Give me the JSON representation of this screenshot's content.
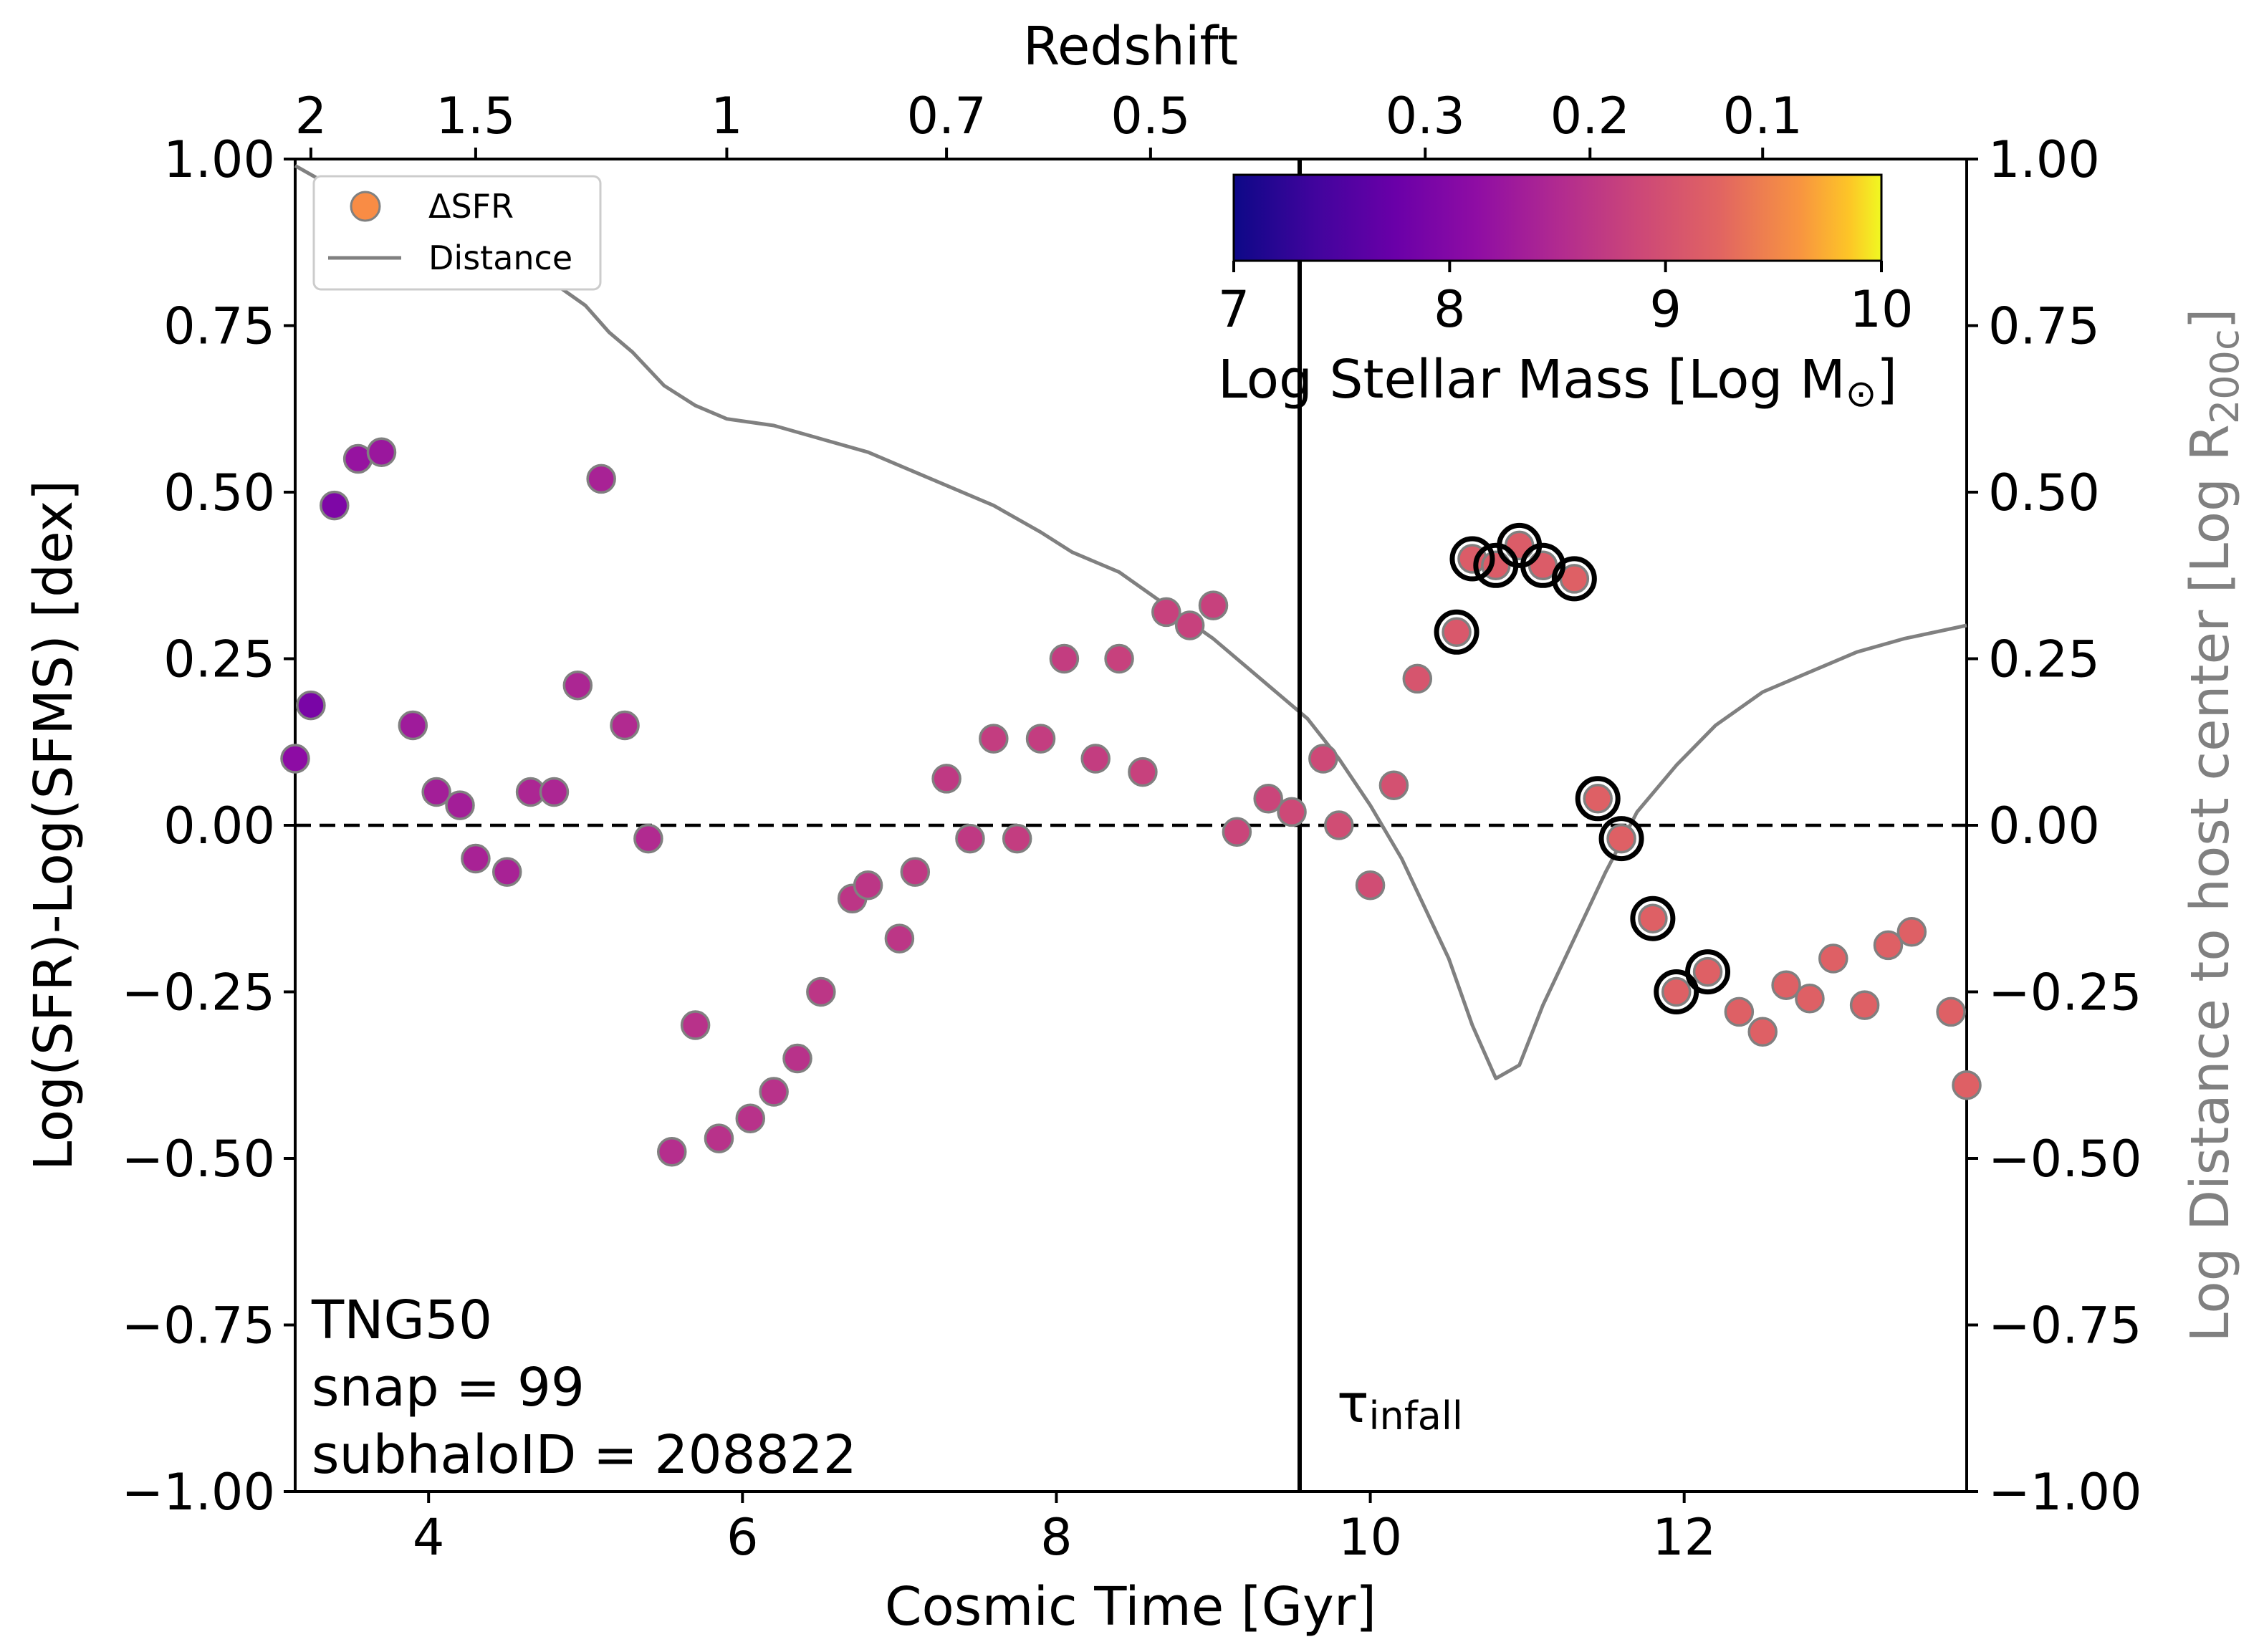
{
  "chart_data": {
    "type": "scatter",
    "xlabel": "Cosmic Time [Gyr]",
    "ylabel": "Log(SFR)-Log(SFMS) [dex]",
    "ylabel_right_main": "Log Distance to host center [Log R",
    "ylabel_right_sub": "200c",
    "ylabel_right_close": "]",
    "top_axis_label": "Redshift",
    "xlim": [
      3.15,
      13.8
    ],
    "ylim": [
      -1.0,
      1.0
    ],
    "x_ticks": [
      4,
      6,
      8,
      10,
      12
    ],
    "x_tick_labels": [
      "4",
      "6",
      "8",
      "10",
      "12"
    ],
    "y_ticks": [
      1.0,
      0.75,
      0.5,
      0.25,
      0.0,
      -0.25,
      -0.5,
      -0.75,
      -1.0
    ],
    "y_tick_labels": [
      "1.00",
      "0.75",
      "0.50",
      "0.25",
      "0.00",
      "−0.25",
      "−0.50",
      "−0.75",
      "−1.00"
    ],
    "top_ticks": [
      {
        "t": 3.25,
        "label": "2"
      },
      {
        "t": 4.3,
        "label": "1.5"
      },
      {
        "t": 5.9,
        "label": "1"
      },
      {
        "t": 7.3,
        "label": "0.7"
      },
      {
        "t": 8.6,
        "label": "0.5"
      },
      {
        "t": 10.35,
        "label": "0.3"
      },
      {
        "t": 11.4,
        "label": "0.2"
      },
      {
        "t": 12.5,
        "label": "0.1"
      }
    ],
    "infall_time": 9.55,
    "infall_label_main": "τ",
    "infall_label_sub": "infall",
    "zero_line": 0.0,
    "annotation_lines": [
      "TNG50",
      "snap = 99",
      "subhaloID = 208822"
    ],
    "legend": {
      "position": "top-left",
      "entries": [
        "ΔSFR",
        "Distance"
      ]
    },
    "colorbar": {
      "label_main": "Log Stellar Mass [Log M",
      "label_sub": "⊙",
      "label_close": "]",
      "range": [
        7,
        10
      ],
      "ticks": [
        7,
        8,
        9,
        10
      ],
      "tick_labels": [
        "7",
        "8",
        "9",
        "10"
      ],
      "colormap": "plasma",
      "position": "top-right"
    },
    "series": [
      {
        "name": "ΔSFR",
        "x": [
          3.15,
          3.25,
          3.4,
          3.55,
          3.7,
          3.9,
          4.05,
          4.2,
          4.3,
          4.5,
          4.65,
          4.8,
          4.95,
          5.1,
          5.25,
          5.4,
          5.55,
          5.7,
          5.85,
          6.05,
          6.2,
          6.35,
          6.5,
          6.7,
          6.8,
          7.0,
          7.1,
          7.3,
          7.45,
          7.6,
          7.75,
          7.9,
          8.05,
          8.25,
          8.4,
          8.55,
          8.7,
          8.85,
          9.0,
          9.15,
          9.35,
          9.5,
          9.7,
          9.8,
          10.0,
          10.15,
          10.3,
          10.55,
          10.65,
          10.8,
          10.95,
          11.1,
          11.3,
          11.45,
          11.6,
          11.8,
          11.95,
          12.15,
          12.35,
          12.5,
          12.65,
          12.8,
          12.95,
          13.15,
          13.3,
          13.45,
          13.7,
          13.8
        ],
        "y": [
          0.1,
          0.18,
          0.48,
          0.55,
          0.56,
          0.15,
          0.05,
          0.03,
          -0.05,
          -0.07,
          0.05,
          0.05,
          0.21,
          0.52,
          0.15,
          -0.02,
          -0.49,
          -0.3,
          -0.47,
          -0.44,
          -0.4,
          -0.35,
          -0.25,
          -0.11,
          -0.09,
          -0.17,
          -0.07,
          0.07,
          -0.02,
          0.13,
          -0.02,
          0.13,
          0.25,
          0.1,
          0.25,
          0.08,
          0.32,
          0.3,
          0.33,
          -0.01,
          0.04,
          0.02,
          0.1,
          0.0,
          -0.09,
          0.06,
          0.22,
          0.29,
          0.4,
          0.39,
          0.42,
          0.39,
          0.37,
          0.04,
          -0.02,
          -0.14,
          -0.25,
          -0.22,
          -0.28,
          -0.31,
          -0.24,
          -0.26,
          -0.2,
          -0.27,
          -0.18,
          -0.16,
          -0.28,
          -0.39
        ],
        "log_stellar_mass": [
          8.1,
          7.9,
          7.95,
          8.2,
          8.25,
          8.3,
          8.35,
          8.35,
          8.4,
          8.4,
          8.45,
          8.45,
          8.45,
          8.4,
          8.5,
          8.5,
          8.55,
          8.6,
          8.6,
          8.6,
          8.6,
          8.6,
          8.65,
          8.65,
          8.65,
          8.65,
          8.7,
          8.7,
          8.7,
          8.75,
          8.75,
          8.75,
          8.75,
          8.75,
          8.8,
          8.8,
          8.8,
          8.8,
          8.8,
          8.85,
          8.85,
          8.9,
          8.9,
          8.95,
          8.95,
          9.0,
          9.05,
          9.1,
          9.15,
          9.15,
          9.15,
          9.15,
          9.2,
          9.2,
          9.2,
          9.2,
          9.2,
          9.2,
          9.2,
          9.2,
          9.2,
          9.2,
          9.2,
          9.2,
          9.2,
          9.2,
          9.2,
          9.2
        ],
        "highlighted": [
          false,
          false,
          false,
          false,
          false,
          false,
          false,
          false,
          false,
          false,
          false,
          false,
          false,
          false,
          false,
          false,
          false,
          false,
          false,
          false,
          false,
          false,
          false,
          false,
          false,
          false,
          false,
          false,
          false,
          false,
          false,
          false,
          false,
          false,
          false,
          false,
          false,
          false,
          false,
          false,
          false,
          false,
          false,
          false,
          false,
          false,
          false,
          true,
          true,
          true,
          true,
          true,
          true,
          true,
          true,
          true,
          true,
          true,
          false,
          false,
          false,
          false,
          false,
          false,
          false,
          false,
          false,
          false
        ]
      },
      {
        "name": "Distance",
        "color": "#808080",
        "x": [
          3.15,
          3.3,
          3.5,
          3.7,
          3.9,
          4.1,
          4.4,
          4.7,
          5.0,
          5.15,
          5.3,
          5.5,
          5.7,
          5.9,
          6.2,
          6.5,
          6.8,
          7.0,
          7.3,
          7.6,
          7.9,
          8.1,
          8.4,
          8.7,
          9.0,
          9.2,
          9.4,
          9.6,
          9.8,
          10.0,
          10.2,
          10.5,
          10.65,
          10.8,
          10.95,
          11.1,
          11.3,
          11.5,
          11.7,
          11.95,
          12.2,
          12.5,
          12.8,
          13.1,
          13.4,
          13.8
        ],
        "y": [
          0.99,
          0.97,
          0.97,
          0.95,
          0.92,
          0.9,
          0.87,
          0.83,
          0.78,
          0.74,
          0.71,
          0.66,
          0.63,
          0.61,
          0.6,
          0.58,
          0.56,
          0.54,
          0.51,
          0.48,
          0.44,
          0.41,
          0.38,
          0.33,
          0.28,
          0.24,
          0.2,
          0.16,
          0.1,
          0.03,
          -0.05,
          -0.2,
          -0.3,
          -0.38,
          -0.36,
          -0.27,
          -0.17,
          -0.07,
          0.02,
          0.09,
          0.15,
          0.2,
          0.23,
          0.26,
          0.28,
          0.3
        ]
      }
    ]
  }
}
